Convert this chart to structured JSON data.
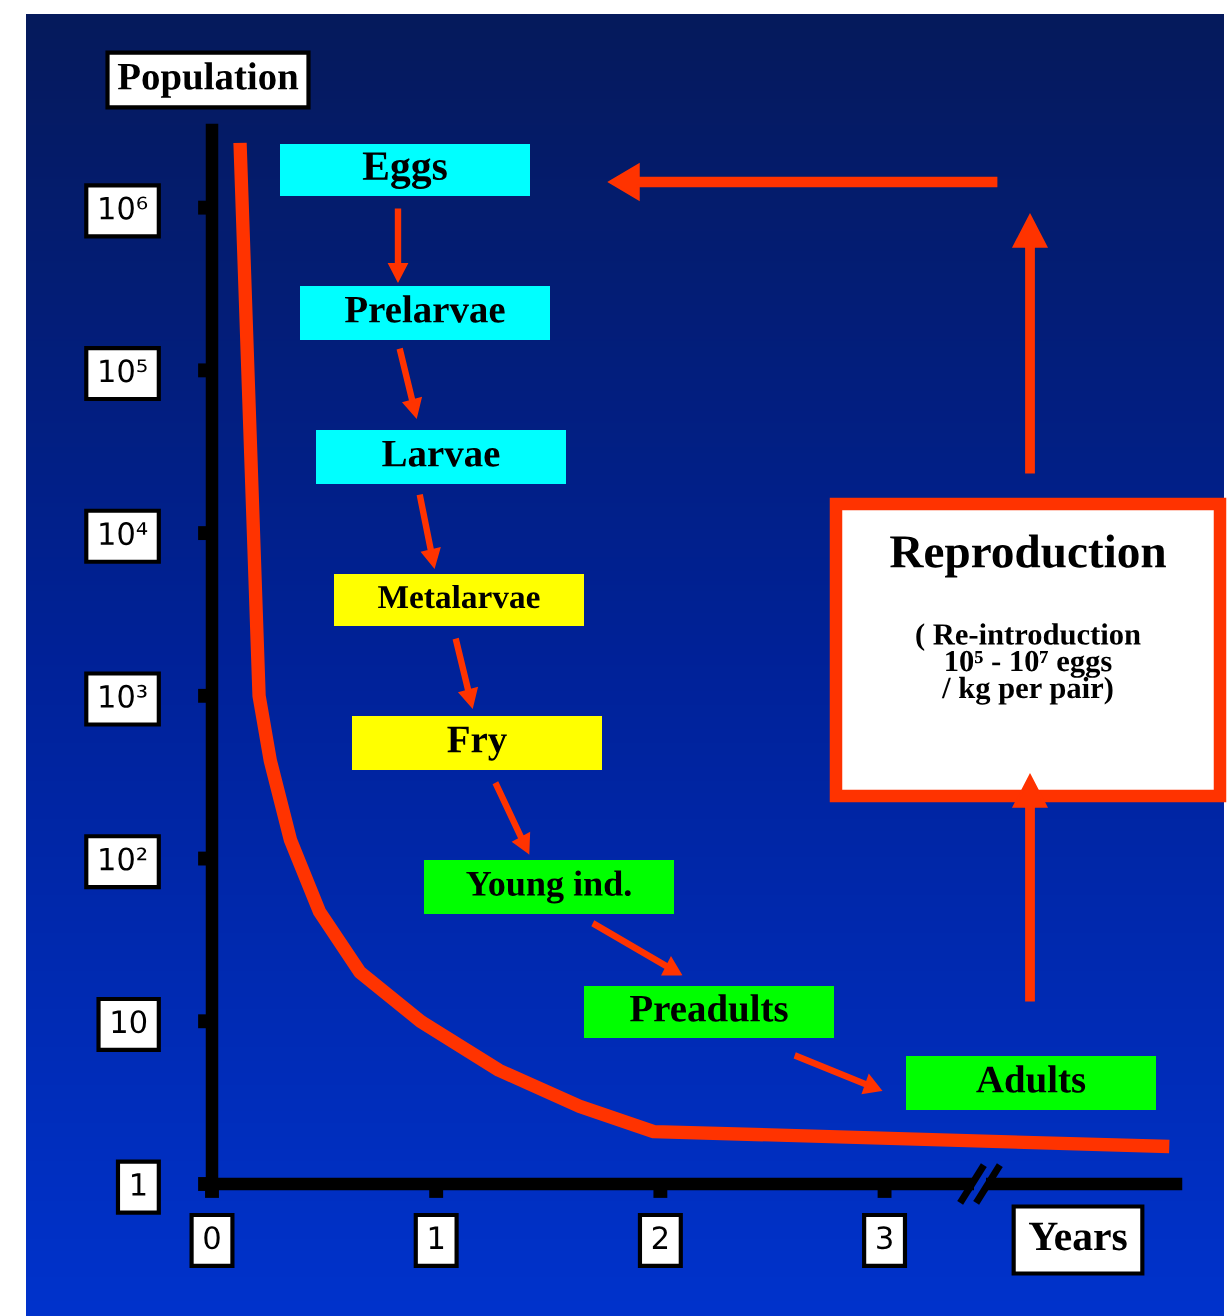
{
  "chart_data": {
    "type": "line",
    "xlabel": "Years",
    "ylabel": "Population",
    "log": "y",
    "xlim": [
      0,
      4.3
    ],
    "ylim": [
      1,
      3000000
    ],
    "xticks": [
      0,
      1,
      2,
      3
    ],
    "yticks": [
      1,
      10,
      {
        "value": 100,
        "label": "10²"
      },
      {
        "value": 1000,
        "label": "10³"
      },
      {
        "value": 10000,
        "label": "10⁴"
      },
      {
        "value": 100000,
        "label": "10⁵"
      },
      {
        "value": 1000000,
        "label": "10⁶"
      }
    ],
    "series": [
      {
        "color": "#ff3300",
        "x": [
          0.125,
          0.21,
          0.26,
          0.35,
          0.48,
          0.66,
          0.93,
          1.28,
          1.64,
          1.97,
          4.27
        ],
        "values": [
          2500000,
          1000,
          400,
          130,
          47,
          20,
          10,
          5,
          3,
          2.1,
          1.7
        ]
      }
    ],
    "annotations": [
      "Eggs",
      "Prelarvae",
      "Larvae",
      "Metalarvae",
      "Fry",
      "Young ind.",
      "Preadults",
      "Adults",
      "Reproduction",
      "( Re-introduction\n10⁵ - 10⁷ eggs\n/ kg per pair)"
    ]
  }
}
